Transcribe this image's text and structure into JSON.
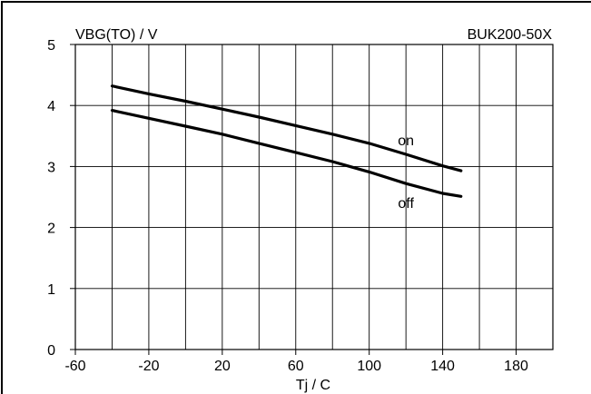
{
  "chart_data": {
    "type": "line",
    "title": "",
    "ylabel": "VBG(TO) / V",
    "xlabel": "Tj / C",
    "device_label": "BUK200-50X",
    "xlim": [
      -60,
      200
    ],
    "ylim": [
      0,
      5
    ],
    "x_ticks": [
      "-60",
      "-20",
      "20",
      "60",
      "100",
      "140",
      "180"
    ],
    "x_tick_values": [
      -60,
      -20,
      20,
      60,
      100,
      140,
      180
    ],
    "x_grid_step": 20,
    "y_ticks": [
      "0",
      "1",
      "2",
      "3",
      "4",
      "5"
    ],
    "y_tick_values": [
      0,
      1,
      2,
      3,
      4,
      5
    ],
    "grid": true,
    "series": [
      {
        "name": "on",
        "x": [
          -40,
          -20,
          0,
          20,
          40,
          60,
          80,
          100,
          120,
          140,
          150
        ],
        "values": [
          4.32,
          4.19,
          4.07,
          3.94,
          3.81,
          3.67,
          3.53,
          3.38,
          3.2,
          3.01,
          2.93
        ]
      },
      {
        "name": "off",
        "x": [
          -40,
          -20,
          0,
          20,
          40,
          60,
          80,
          100,
          120,
          140,
          150
        ],
        "values": [
          3.92,
          3.79,
          3.66,
          3.53,
          3.38,
          3.23,
          3.08,
          2.91,
          2.72,
          2.56,
          2.51
        ]
      }
    ],
    "annotations": [
      {
        "text": "on",
        "x": 120,
        "y": 3.35
      },
      {
        "text": "off",
        "x": 120,
        "y": 2.32
      }
    ]
  }
}
